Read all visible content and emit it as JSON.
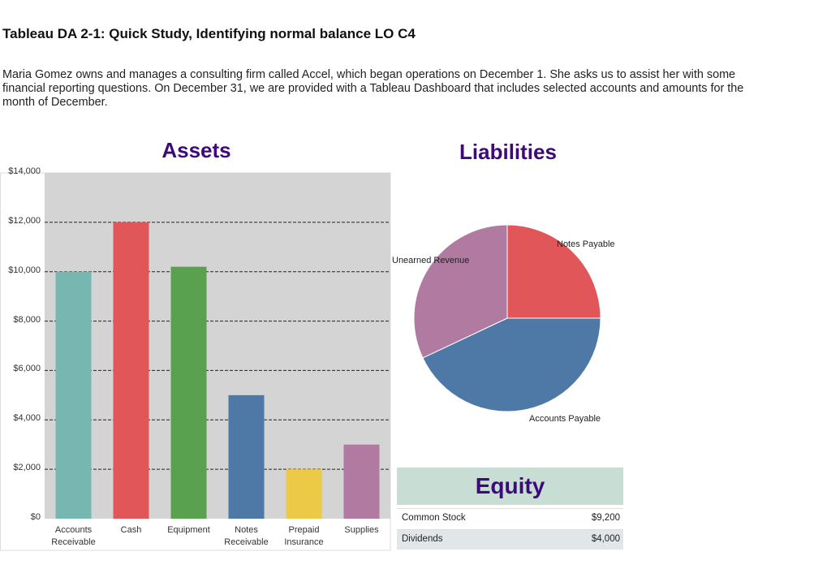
{
  "header": {
    "title": "Tableau DA 2-1: Quick Study, Identifying normal balance LO C4",
    "description": "Maria Gomez owns and manages a consulting firm called Accel, which began operations on December 1. She asks us to assist her with some financial reporting questions. On December 31, we are provided with a Tableau Dashboard that includes selected accounts and amounts for the month of December."
  },
  "chart_data": [
    {
      "type": "bar",
      "title": "Assets",
      "categories": [
        "Accounts Receivable",
        "Cash",
        "Equipment",
        "Notes Receivable",
        "Prepaid Insurance",
        "Supplies"
      ],
      "values": [
        10000,
        12000,
        10200,
        5000,
        2000,
        3000
      ],
      "colors": [
        "#76b7b2",
        "#e15759",
        "#59a14f",
        "#4e79a7",
        "#edc948",
        "#b07aa1"
      ],
      "ylim": [
        0,
        14000
      ],
      "yticks": [
        {
          "value": 0,
          "label": "$0"
        },
        {
          "value": 2000,
          "label": "$2,000"
        },
        {
          "value": 4000,
          "label": "$4,000"
        },
        {
          "value": 6000,
          "label": "$6,000"
        },
        {
          "value": 8000,
          "label": "$8,000"
        },
        {
          "value": 10000,
          "label": "$10,000"
        },
        {
          "value": 12000,
          "label": "$12,000"
        },
        {
          "value": 14000,
          "label": "$14,000"
        }
      ],
      "grid": true
    },
    {
      "type": "pie",
      "title": "Liabilities",
      "categories": [
        "Notes Payable",
        "Accounts Payable",
        "Unearned Revenue"
      ],
      "values": [
        25,
        43,
        32
      ],
      "colors": [
        "#e15759",
        "#4e79a7",
        "#b07aa1"
      ]
    }
  ],
  "equity": {
    "title": "Equity",
    "rows": [
      [
        "Common Stock",
        "$9,200"
      ],
      [
        "Dividends",
        "$4,000"
      ]
    ]
  }
}
